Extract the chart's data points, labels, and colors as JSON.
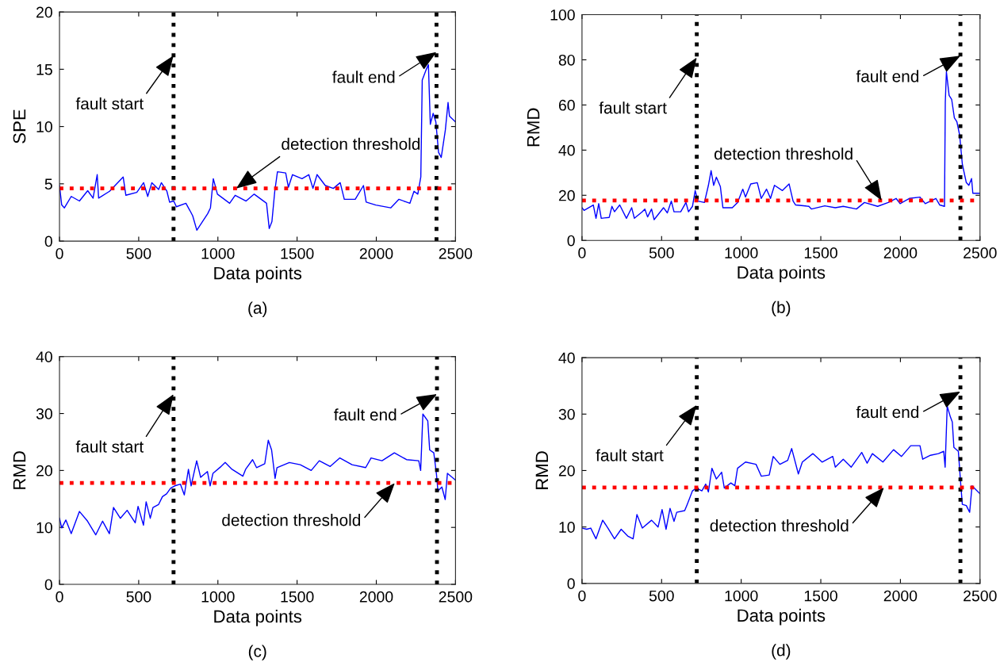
{
  "chart_data": [
    {
      "type": "line",
      "xlabel": "Data points",
      "ylabel": "SPE",
      "xlim": [
        0,
        2500
      ],
      "xticks": [
        0,
        500,
        1000,
        1500,
        2000,
        2500
      ],
      "ylim": [
        0,
        20
      ],
      "yticks": [
        0,
        5,
        10,
        15,
        20
      ],
      "grid": false,
      "marker": "none",
      "line_style": "solid",
      "series": [
        {
          "color": "#0000ff",
          "x": [
            0,
            14,
            31,
            74,
            126,
            178,
            212,
            238,
            247,
            316,
            402,
            419,
            488,
            531,
            557,
            583,
            626,
            643,
            678,
            695,
            721,
            738,
            798,
            824,
            841,
            867,
            936,
            953,
            971,
            997,
            1074,
            1109,
            1178,
            1229,
            1307,
            1324,
            1341,
            1359,
            1376,
            1428,
            1445,
            1471,
            1531,
            1574,
            1600,
            1626,
            1678,
            1729,
            1772,
            1798,
            1867,
            1919,
            1936,
            1997,
            2091,
            2143,
            2212,
            2238,
            2262,
            2281,
            2290,
            2316,
            2329,
            2341,
            2359,
            2376,
            2393,
            2410,
            2436,
            2453,
            2462,
            2500
          ],
          "values": [
            4.85,
            3.15,
            2.9,
            3.9,
            3.5,
            4.4,
            3.75,
            5.8,
            3.75,
            4.35,
            5.6,
            4.0,
            4.25,
            5.1,
            3.9,
            5.1,
            4.5,
            5.1,
            4.35,
            3.4,
            3.5,
            3.0,
            3.3,
            2.65,
            2.2,
            0.95,
            2.4,
            2.9,
            5.45,
            4.1,
            3.3,
            4.0,
            3.5,
            4.1,
            3.3,
            1.1,
            1.7,
            4.35,
            6.05,
            5.95,
            4.7,
            5.8,
            5.45,
            5.8,
            4.6,
            5.8,
            4.85,
            4.6,
            5.1,
            3.65,
            3.65,
            4.85,
            3.4,
            3.15,
            2.9,
            3.65,
            3.3,
            4.35,
            4.1,
            5.6,
            14.05,
            15.0,
            15.4,
            10.2,
            11.15,
            10.4,
            7.75,
            7.3,
            9.7,
            12.1,
            10.9,
            10.4
          ]
        }
      ],
      "ref_lines": [
        {
          "axis": "x",
          "value": 720,
          "color": "#000000",
          "line_style": "dotted"
        },
        {
          "axis": "x",
          "value": 2380,
          "color": "#000000",
          "line_style": "dotted"
        },
        {
          "axis": "y",
          "value": 4.6,
          "color": "#ff0000",
          "line_style": "dotted"
        }
      ],
      "annotations": [
        {
          "text": "fault start",
          "x": 720,
          "y": 16.2
        },
        {
          "text": "fault end",
          "x": 2380,
          "y": 16.5
        },
        {
          "text": "detection threshold",
          "x": 1116,
          "y": 4.6
        },
        "(a)"
      ]
    },
    {
      "type": "line",
      "xlabel": "Data points",
      "ylabel": "RMD",
      "xlim": [
        0,
        2500
      ],
      "xticks": [
        0,
        500,
        1000,
        1500,
        2000,
        2500
      ],
      "ylim": [
        0,
        100
      ],
      "yticks": [
        0,
        20,
        40,
        60,
        80,
        100
      ],
      "grid": false,
      "marker": "none",
      "line_style": "solid",
      "series": [
        {
          "color": "#0000ff",
          "x": [
            0,
            13,
            71,
            88,
            105,
            121,
            171,
            188,
            204,
            237,
            279,
            312,
            329,
            379,
            395,
            412,
            437,
            453,
            512,
            536,
            561,
            578,
            620,
            653,
            669,
            694,
            711,
            728,
            769,
            794,
            811,
            827,
            844,
            869,
            885,
            944,
            977,
            1010,
            1027,
            1060,
            1101,
            1126,
            1159,
            1184,
            1209,
            1259,
            1301,
            1326,
            1342,
            1425,
            1442,
            1525,
            1591,
            1641,
            1724,
            1774,
            1857,
            1924,
            1973,
            1998,
            2056,
            2123,
            2156,
            2223,
            2247,
            2277,
            2282,
            2289,
            2306,
            2322,
            2339,
            2355,
            2372,
            2389,
            2414,
            2430,
            2447,
            2455,
            2500
          ],
          "values": [
            14.5,
            13.3,
            15.7,
            9.8,
            16.3,
            9.8,
            10.2,
            15.1,
            12.7,
            15.7,
            9.8,
            14.5,
            9.8,
            12.7,
            13.9,
            10.4,
            13.9,
            9.2,
            14.5,
            12.2,
            17.4,
            12.7,
            12.7,
            16.8,
            12.7,
            15.1,
            22.1,
            17.4,
            16.8,
            24.4,
            30.9,
            24.4,
            28.0,
            23.9,
            14.5,
            14.5,
            16.8,
            22.7,
            19.2,
            25.0,
            25.6,
            18.6,
            22.7,
            18.6,
            24.4,
            22.1,
            25.0,
            17.4,
            15.7,
            15.1,
            13.9,
            15.3,
            14.5,
            15.1,
            13.9,
            16.8,
            15.1,
            16.8,
            18.6,
            16.3,
            18.6,
            19.2,
            16.3,
            18.6,
            15.7,
            15.1,
            61.3,
            74.7,
            64.2,
            62.5,
            54.3,
            52.5,
            46.7,
            33.8,
            25.6,
            24.4,
            27.4,
            20.9,
            20.9
          ]
        }
      ],
      "ref_lines": [
        {
          "axis": "x",
          "value": 721,
          "color": "#000000",
          "line_style": "dotted"
        },
        {
          "axis": "x",
          "value": 2377,
          "color": "#000000",
          "line_style": "dotted"
        },
        {
          "axis": "y",
          "value": 17.7,
          "color": "#ff0000",
          "line_style": "dotted"
        }
      ],
      "annotations": [
        {
          "text": "fault start",
          "x": 721,
          "y": 81
        },
        {
          "text": "fault end",
          "x": 2377,
          "y": 81.8
        },
        {
          "text": "detection threshold",
          "x": 1882,
          "y": 17.7
        },
        "(b)"
      ]
    },
    {
      "type": "line",
      "xlabel": "Data points",
      "ylabel": "RMD",
      "xlim": [
        0,
        2500
      ],
      "xticks": [
        0,
        500,
        1000,
        1500,
        2000,
        2500
      ],
      "ylim": [
        0,
        40
      ],
      "yticks": [
        0,
        10,
        20,
        30,
        40
      ],
      "grid": false,
      "marker": "none",
      "line_style": "solid",
      "series": [
        {
          "color": "#0000ff",
          "x": [
            0,
            14,
            40,
            74,
            126,
            177,
            229,
            272,
            315,
            341,
            384,
            427,
            478,
            496,
            530,
            547,
            573,
            590,
            625,
            650,
            676,
            702,
            728,
            763,
            788,
            814,
            831,
            866,
            891,
            934,
            951,
            969,
            1020,
            1046,
            1089,
            1158,
            1175,
            1219,
            1244,
            1296,
            1318,
            1339,
            1361,
            1373,
            1451,
            1520,
            1589,
            1640,
            1709,
            1770,
            1847,
            1933,
            1967,
            2036,
            2114,
            2191,
            2268,
            2280,
            2286,
            2294,
            2325,
            2337,
            2363,
            2380,
            2389,
            2414,
            2435,
            2449,
            2500
          ],
          "values": [
            11.6,
            9.9,
            11.3,
            8.9,
            12.8,
            11.1,
            8.7,
            11.1,
            8.9,
            13.5,
            11.6,
            13.0,
            10.8,
            13.7,
            10.4,
            14.5,
            11.6,
            13.5,
            14.0,
            15.4,
            15.9,
            16.9,
            17.3,
            17.6,
            15.7,
            20.2,
            17.3,
            21.7,
            18.8,
            19.8,
            17.3,
            19.5,
            20.7,
            21.4,
            20.2,
            19.0,
            20.2,
            21.9,
            20.5,
            21.2,
            25.3,
            23.6,
            18.6,
            20.5,
            21.4,
            21.0,
            20.0,
            21.7,
            20.7,
            22.2,
            21.0,
            20.5,
            22.2,
            21.7,
            23.1,
            21.9,
            21.7,
            20.0,
            24.1,
            29.9,
            28.7,
            23.6,
            23.1,
            19.3,
            16.4,
            17.1,
            14.9,
            19.5,
            18.3
          ]
        }
      ],
      "ref_lines": [
        {
          "axis": "x",
          "value": 720,
          "color": "#000000",
          "line_style": "dotted"
        },
        {
          "axis": "x",
          "value": 2383,
          "color": "#000000",
          "line_style": "dotted"
        },
        {
          "axis": "y",
          "value": 17.8,
          "color": "#ff0000",
          "line_style": "dotted"
        }
      ],
      "annotations": [
        {
          "text": "fault start",
          "x": 720,
          "y": 33.4
        },
        {
          "text": "fault end",
          "x": 2383,
          "y": 33.4
        },
        {
          "text": "detection threshold",
          "x": 2117,
          "y": 17.8
        },
        "(c)"
      ]
    },
    {
      "type": "line",
      "xlabel": "Data points",
      "ylabel": "RMD",
      "xlim": [
        0,
        2500
      ],
      "xticks": [
        0,
        500,
        1000,
        1500,
        2000,
        2500
      ],
      "ylim": [
        0,
        40
      ],
      "yticks": [
        0,
        10,
        20,
        30,
        40
      ],
      "grid": false,
      "marker": "none",
      "line_style": "solid",
      "series": [
        {
          "color": "#0000ff",
          "x": [
            0,
            30,
            55,
            88,
            130,
            163,
            204,
            246,
            287,
            321,
            345,
            379,
            437,
            478,
            503,
            528,
            553,
            578,
            595,
            645,
            661,
            694,
            719,
            753,
            777,
            794,
            816,
            844,
            877,
            894,
            935,
            960,
            977,
            1027,
            1093,
            1126,
            1176,
            1201,
            1243,
            1292,
            1317,
            1359,
            1384,
            1450,
            1508,
            1575,
            1591,
            1641,
            1691,
            1757,
            1791,
            1824,
            1890,
            1957,
            2007,
            2065,
            2123,
            2140,
            2189,
            2239,
            2272,
            2281,
            2286,
            2294,
            2314,
            2326,
            2336,
            2364,
            2377,
            2389,
            2414,
            2435,
            2450,
            2500
          ],
          "values": [
            9.8,
            9.6,
            9.8,
            7.9,
            11.2,
            9.8,
            7.9,
            9.6,
            8.4,
            7.9,
            12.2,
            9.8,
            11.2,
            10.0,
            13.1,
            9.6,
            13.3,
            11.0,
            12.6,
            12.9,
            14.0,
            16.4,
            16.9,
            16.4,
            17.6,
            16.2,
            20.4,
            18.5,
            19.7,
            16.9,
            17.8,
            17.3,
            20.4,
            21.5,
            21.1,
            19.0,
            19.2,
            22.5,
            21.1,
            21.8,
            23.9,
            19.4,
            21.5,
            23.0,
            21.5,
            22.5,
            20.6,
            22.0,
            20.6,
            23.2,
            21.3,
            23.0,
            21.5,
            23.7,
            22.5,
            24.4,
            24.4,
            22.0,
            22.7,
            23.0,
            23.4,
            20.6,
            24.8,
            31.4,
            29.5,
            28.6,
            24.1,
            23.4,
            18.3,
            14.0,
            13.8,
            12.6,
            17.3,
            15.9
          ]
        }
      ],
      "ref_lines": [
        {
          "axis": "x",
          "value": 721,
          "color": "#000000",
          "line_style": "dotted"
        },
        {
          "axis": "x",
          "value": 2377,
          "color": "#000000",
          "line_style": "dotted"
        },
        {
          "axis": "y",
          "value": 17.0,
          "color": "#ff0000",
          "line_style": "dotted"
        }
      ],
      "annotations": [
        {
          "text": "fault start",
          "x": 721,
          "y": 31.6
        },
        {
          "text": "fault end",
          "x": 2377,
          "y": 34.0
        },
        {
          "text": "detection threshold",
          "x": 1897,
          "y": 17.0
        },
        "(d)"
      ]
    }
  ]
}
